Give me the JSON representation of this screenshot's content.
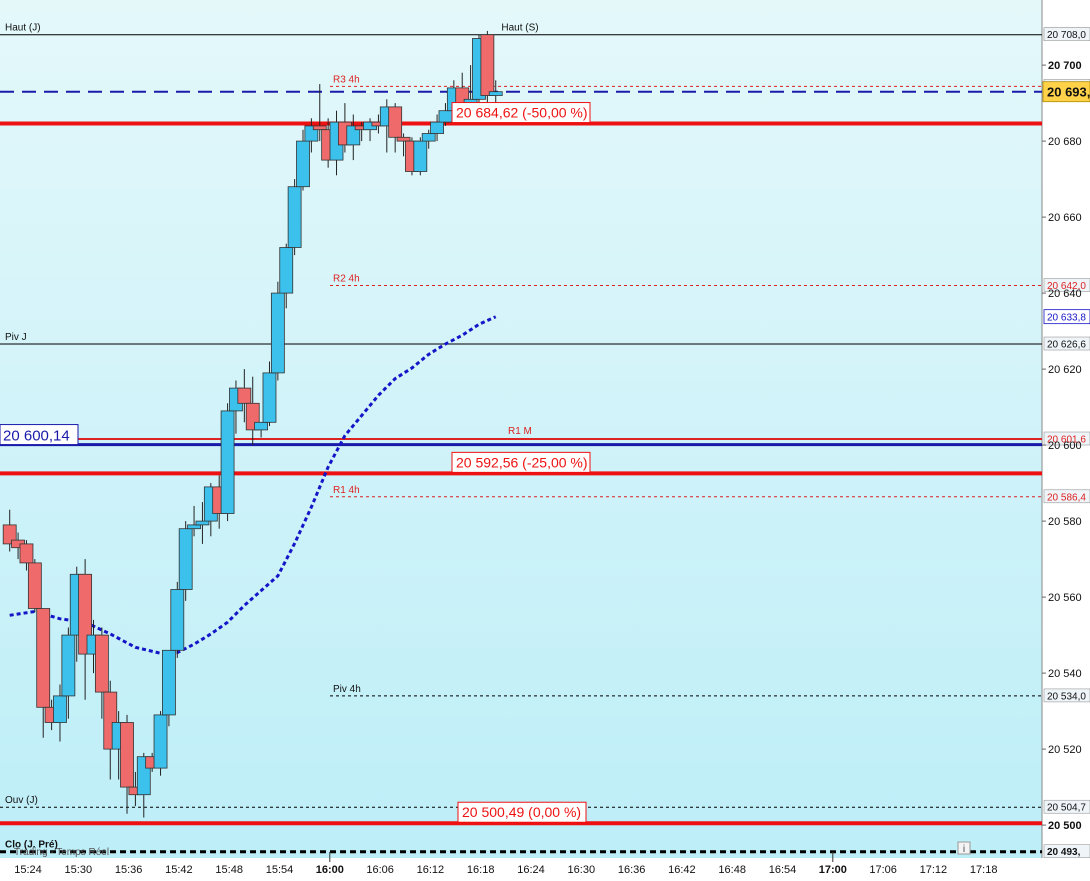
{
  "chart_data": {
    "type": "candlestick",
    "instrument_note": "Trading - Temps Réel",
    "x_ticks": [
      "15:24",
      "15:30",
      "15:36",
      "15:42",
      "15:48",
      "15:54",
      "16:00",
      "16:06",
      "16:12",
      "16:18",
      "16:24",
      "16:30",
      "16:36",
      "16:42",
      "16:48",
      "16:54",
      "17:00",
      "17:06",
      "17:12",
      "17:18"
    ],
    "y_ticks": [
      "20 700",
      "20 680",
      "20 660",
      "20 640",
      "20 620",
      "20 600",
      "20 580",
      "20 560",
      "20 540",
      "20 520",
      "20 500"
    ],
    "ylim": [
      20489,
      20715
    ],
    "candles": [
      {
        "t": 0,
        "o": 20579,
        "h": 20583,
        "l": 20572,
        "c": 20574
      },
      {
        "t": 1,
        "o": 20575,
        "h": 20577,
        "l": 20570,
        "c": 20573
      },
      {
        "t": 2,
        "o": 20574,
        "h": 20575,
        "l": 20567,
        "c": 20569
      },
      {
        "t": 3,
        "o": 20569,
        "h": 20570,
        "l": 20556,
        "c": 20557
      },
      {
        "t": 4,
        "o": 20557,
        "h": 20557,
        "l": 20523,
        "c": 20531
      },
      {
        "t": 5,
        "o": 20531,
        "h": 20533,
        "l": 20525,
        "c": 20527
      },
      {
        "t": 6,
        "o": 20527,
        "h": 20537,
        "l": 20522,
        "c": 20534
      },
      {
        "t": 7,
        "o": 20534,
        "h": 20552,
        "l": 20528,
        "c": 20550
      },
      {
        "t": 8,
        "o": 20550,
        "h": 20568,
        "l": 20543,
        "c": 20566
      },
      {
        "t": 9,
        "o": 20566,
        "h": 20570,
        "l": 20533,
        "c": 20545
      },
      {
        "t": 10,
        "o": 20545,
        "h": 20554,
        "l": 20540,
        "c": 20550
      },
      {
        "t": 11,
        "o": 20550,
        "h": 20552,
        "l": 20528,
        "c": 20535
      },
      {
        "t": 12,
        "o": 20535,
        "h": 20538,
        "l": 20512,
        "c": 20520
      },
      {
        "t": 13,
        "o": 20520,
        "h": 20530,
        "l": 20512,
        "c": 20527
      },
      {
        "t": 14,
        "o": 20527,
        "h": 20529,
        "l": 20503,
        "c": 20510
      },
      {
        "t": 15,
        "o": 20510,
        "h": 20514,
        "l": 20505,
        "c": 20508
      },
      {
        "t": 16,
        "o": 20508,
        "h": 20519,
        "l": 20502,
        "c": 20518
      },
      {
        "t": 17,
        "o": 20518,
        "h": 20519,
        "l": 20514,
        "c": 20515
      },
      {
        "t": 18,
        "o": 20515,
        "h": 20530,
        "l": 20513,
        "c": 20529
      },
      {
        "t": 19,
        "o": 20529,
        "h": 20546,
        "l": 20526,
        "c": 20546
      },
      {
        "t": 20,
        "o": 20546,
        "h": 20564,
        "l": 20544,
        "c": 20562
      },
      {
        "t": 21,
        "o": 20562,
        "h": 20580,
        "l": 20559,
        "c": 20578
      },
      {
        "t": 22,
        "o": 20578,
        "h": 20584,
        "l": 20576,
        "c": 20579
      },
      {
        "t": 23,
        "o": 20579,
        "h": 20585,
        "l": 20574,
        "c": 20580
      },
      {
        "t": 24,
        "o": 20580,
        "h": 20590,
        "l": 20576,
        "c": 20589
      },
      {
        "t": 25,
        "o": 20589,
        "h": 20592,
        "l": 20578,
        "c": 20582
      },
      {
        "t": 26,
        "o": 20582,
        "h": 20611,
        "l": 20580,
        "c": 20609
      },
      {
        "t": 27,
        "o": 20609,
        "h": 20617,
        "l": 20603,
        "c": 20615
      },
      {
        "t": 28,
        "o": 20615,
        "h": 20620,
        "l": 20606,
        "c": 20611
      },
      {
        "t": 29,
        "o": 20611,
        "h": 20618,
        "l": 20600,
        "c": 20604
      },
      {
        "t": 30,
        "o": 20604,
        "h": 20606,
        "l": 20602,
        "c": 20606
      },
      {
        "t": 31,
        "o": 20606,
        "h": 20622,
        "l": 20605,
        "c": 20619
      },
      {
        "t": 32,
        "o": 20619,
        "h": 20643,
        "l": 20617,
        "c": 20640
      },
      {
        "t": 33,
        "o": 20640,
        "h": 20653,
        "l": 20636,
        "c": 20652
      },
      {
        "t": 34,
        "o": 20652,
        "h": 20670,
        "l": 20650,
        "c": 20668
      },
      {
        "t": 35,
        "o": 20668,
        "h": 20683,
        "l": 20667,
        "c": 20680
      },
      {
        "t": 36,
        "o": 20680,
        "h": 20686,
        "l": 20677,
        "c": 20684
      },
      {
        "t": 37,
        "o": 20684,
        "h": 20695,
        "l": 20680,
        "c": 20683
      },
      {
        "t": 38,
        "o": 20683,
        "h": 20686,
        "l": 20673,
        "c": 20675
      },
      {
        "t": 39,
        "o": 20675,
        "h": 20688,
        "l": 20671,
        "c": 20685
      },
      {
        "t": 40,
        "o": 20685,
        "h": 20690,
        "l": 20677,
        "c": 20679
      },
      {
        "t": 41,
        "o": 20679,
        "h": 20687,
        "l": 20675,
        "c": 20684
      },
      {
        "t": 42,
        "o": 20684,
        "h": 20685,
        "l": 20680,
        "c": 20683
      },
      {
        "t": 43,
        "o": 20683,
        "h": 20686,
        "l": 20680,
        "c": 20685
      },
      {
        "t": 44,
        "o": 20685,
        "h": 20687,
        "l": 20682,
        "c": 20684
      },
      {
        "t": 45,
        "o": 20684,
        "h": 20691,
        "l": 20677,
        "c": 20689
      },
      {
        "t": 46,
        "o": 20689,
        "h": 20690,
        "l": 20677,
        "c": 20681
      },
      {
        "t": 47,
        "o": 20681,
        "h": 20682,
        "l": 20676,
        "c": 20680
      },
      {
        "t": 48,
        "o": 20680,
        "h": 20681,
        "l": 20671,
        "c": 20672
      },
      {
        "t": 49,
        "o": 20672,
        "h": 20681,
        "l": 20671,
        "c": 20680
      },
      {
        "t": 50,
        "o": 20680,
        "h": 20683,
        "l": 20678,
        "c": 20682
      },
      {
        "t": 51,
        "o": 20682,
        "h": 20687,
        "l": 20680,
        "c": 20685
      },
      {
        "t": 52,
        "o": 20685,
        "h": 20690,
        "l": 20684,
        "c": 20688
      },
      {
        "t": 53,
        "o": 20688,
        "h": 20696,
        "l": 20685,
        "c": 20694
      },
      {
        "t": 54,
        "o": 20694,
        "h": 20698,
        "l": 20689,
        "c": 20690
      },
      {
        "t": 55,
        "o": 20690,
        "h": 20700,
        "l": 20688,
        "c": 20691
      },
      {
        "t": 56,
        "o": 20691,
        "h": 20708,
        "l": 20690,
        "c": 20707
      },
      {
        "t": 57,
        "o": 20708,
        "h": 20709,
        "l": 20690,
        "c": 20692
      },
      {
        "t": 58,
        "o": 20692,
        "h": 20696,
        "l": 20689,
        "c": 20693
      }
    ],
    "moving_average": [
      {
        "t": 0,
        "v": 20555.2
      },
      {
        "t": 3,
        "v": 20556.2
      },
      {
        "t": 6,
        "v": 20554.3
      },
      {
        "t": 9,
        "v": 20553.4
      },
      {
        "t": 12,
        "v": 20550.3
      },
      {
        "t": 15,
        "v": 20546.8
      },
      {
        "t": 18,
        "v": 20545.2
      },
      {
        "t": 20,
        "v": 20545.4
      },
      {
        "t": 22,
        "v": 20547.6
      },
      {
        "t": 24,
        "v": 20550.3
      },
      {
        "t": 26,
        "v": 20553.4
      },
      {
        "t": 28,
        "v": 20557.8
      },
      {
        "t": 30,
        "v": 20561.7
      },
      {
        "t": 32,
        "v": 20565.6
      },
      {
        "t": 34,
        "v": 20574.1
      },
      {
        "t": 36,
        "v": 20583.7
      },
      {
        "t": 38,
        "v": 20594.2
      },
      {
        "t": 40,
        "v": 20602.5
      },
      {
        "t": 42,
        "v": 20607.8
      },
      {
        "t": 44,
        "v": 20613.1
      },
      {
        "t": 46,
        "v": 20617.5
      },
      {
        "t": 48,
        "v": 20620.3
      },
      {
        "t": 50,
        "v": 20623.9
      },
      {
        "t": 52,
        "v": 20626.6
      },
      {
        "t": 54,
        "v": 20628.9
      },
      {
        "t": 56,
        "v": 20631.8
      },
      {
        "t": 58,
        "v": 20633.8
      }
    ],
    "colors": {
      "up": "#3cc0ec",
      "down": "#ef6b6b",
      "wick": "#222222",
      "background_top": "#e4f8fa",
      "background_bottom": "#bdeef8",
      "major_level": "#ee1111",
      "blue_level": "#1a1aaa",
      "moving_average": "#1515c8",
      "resistance": "#dd2222",
      "last_price_box": "#ffd24a"
    },
    "reference_lines": [
      {
        "label": "Haut (J)",
        "value": 20708.0,
        "style": "solid",
        "color": "#000000",
        "axis_label": "20 708,0",
        "label_pos": "left"
      },
      {
        "label": "Haut (S)",
        "value": 20708.0,
        "style": "none",
        "color": "#000000",
        "axis_label": "20 708,0",
        "label_pos": "center"
      },
      {
        "label": "R3 4h",
        "value": 20694.4,
        "style": "dotted",
        "color": "#dd2222",
        "axis_label": "20 694,4",
        "label_pos": "mid"
      },
      {
        "label": "R2 4h",
        "value": 20642.0,
        "style": "dotted",
        "color": "#dd2222",
        "axis_label": "20 642,0",
        "label_pos": "mid"
      },
      {
        "label": "Piv J",
        "value": 20626.6,
        "style": "solid",
        "color": "#000000",
        "axis_label": "20 626,6",
        "label_pos": "left"
      },
      {
        "label": "R1 M",
        "value": 20601.6,
        "style": "solid",
        "color": "#dd2222",
        "axis_label": "20 601,6",
        "label_pos": "r1m"
      },
      {
        "label": "R1 4h",
        "value": 20586.4,
        "style": "dotted",
        "color": "#dd2222",
        "axis_label": "20 586,4",
        "label_pos": "mid"
      },
      {
        "label": "Piv 4h",
        "value": 20534.0,
        "style": "dotted",
        "color": "#000000",
        "axis_label": "20 534,0",
        "label_pos": "mid"
      },
      {
        "label": "Ouv (J)",
        "value": 20504.7,
        "style": "dotted",
        "color": "#000000",
        "axis_label": "20 504,7",
        "label_pos": "left"
      },
      {
        "label": "Clo (J. Pré)",
        "value": 20493.0,
        "style": "dashed-thick",
        "color": "#000000",
        "axis_label": "20 493,",
        "label_pos": "left"
      }
    ],
    "major_levels": [
      {
        "value": 20684.62,
        "label": "20 684,62 (-50,00 %)"
      },
      {
        "value": 20592.56,
        "label": "20 592,56 (-25,00 %)"
      },
      {
        "value": 20500.49,
        "label": "20 500,49 (0,00 %)"
      }
    ],
    "blue_level": {
      "value": 20600.14,
      "label": "20 600,14"
    },
    "ma_axis_label": "20 633,8",
    "last_price": {
      "value": 20693.0,
      "label": "20 693,",
      "sub_label": "20 693,0"
    },
    "top_axis_label": "20 700",
    "bottom_axis_label": "20 500"
  }
}
